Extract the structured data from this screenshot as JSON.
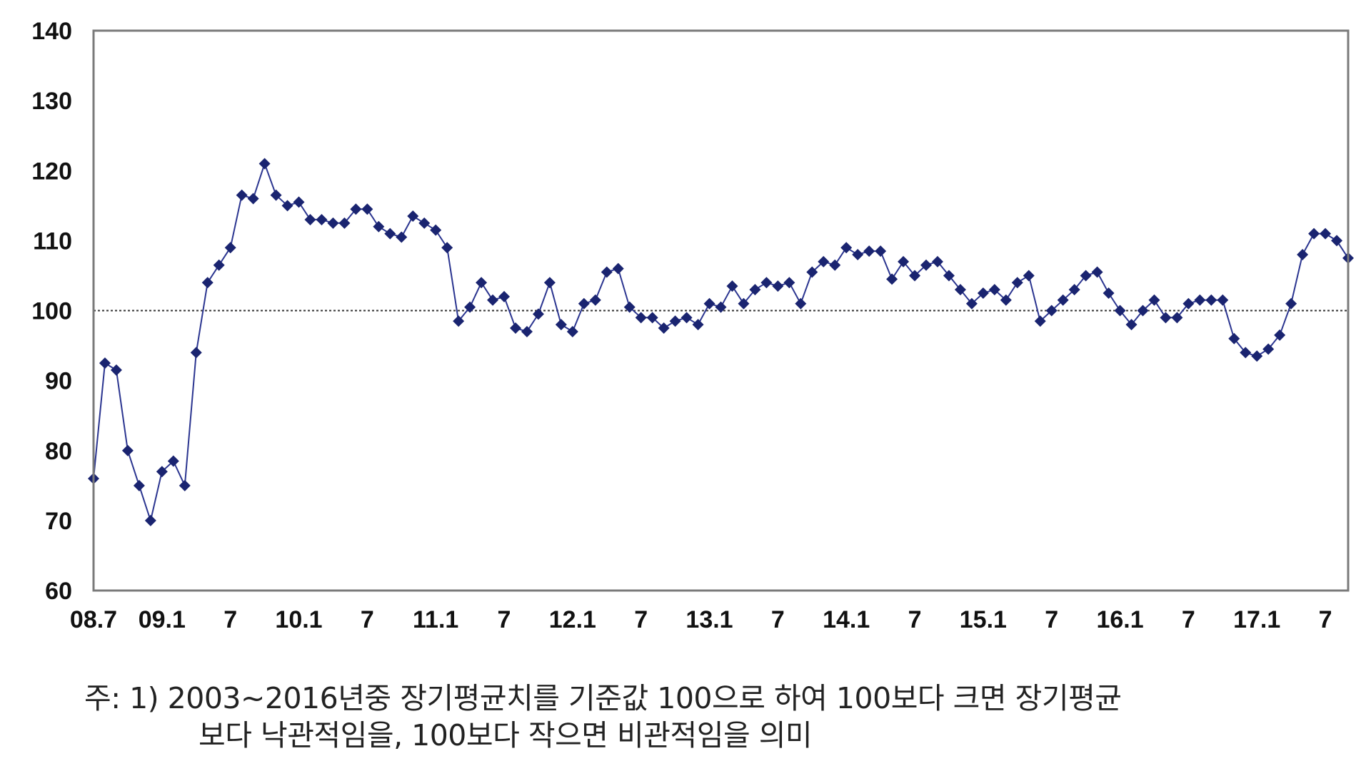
{
  "chart_data": {
    "type": "line",
    "title": "",
    "xlabel": "",
    "ylabel": "",
    "ylim": [
      60,
      140
    ],
    "yticks": [
      60,
      70,
      80,
      90,
      100,
      110,
      120,
      130,
      140
    ],
    "reference_line": {
      "y": 100,
      "style": "dotted"
    },
    "x_tick_labels": [
      "08.7",
      "09.1",
      "7",
      "10.1",
      "7",
      "11.1",
      "7",
      "12.1",
      "7",
      "13.1",
      "7",
      "14.1",
      "7",
      "15.1",
      "7",
      "16.1",
      "7",
      "17.1",
      "7"
    ],
    "x_tick_months": [
      "2008-07",
      "2009-01",
      "2009-07",
      "2010-01",
      "2010-07",
      "2011-01",
      "2011-07",
      "2012-01",
      "2012-07",
      "2013-01",
      "2013-07",
      "2014-01",
      "2014-07",
      "2015-01",
      "2015-07",
      "2016-01",
      "2016-07",
      "2017-01",
      "2017-07"
    ],
    "grid": false,
    "line_color": "#1a2470",
    "marker": "diamond",
    "series": [
      {
        "x_start": "2008-07",
        "x_end": "2017-09",
        "frequency": "monthly",
        "values": [
          76,
          92.5,
          91.5,
          80,
          75,
          70,
          77,
          78.5,
          75,
          94,
          104,
          106.5,
          109,
          116.5,
          116,
          121,
          116.5,
          115,
          115.5,
          113,
          113,
          112.5,
          112.5,
          114.5,
          114.5,
          112,
          111,
          110.5,
          113.5,
          112.5,
          111.5,
          109,
          98.5,
          100.5,
          104,
          101.5,
          102,
          97.5,
          97,
          99.5,
          104,
          98,
          97,
          101,
          101.5,
          105.5,
          106,
          100.5,
          99,
          99,
          97.5,
          98.5,
          99,
          98,
          101,
          100.5,
          103.5,
          101,
          103,
          104,
          103.5,
          104,
          101,
          105.5,
          107,
          106.5,
          109,
          108,
          108.5,
          108.5,
          104.5,
          107,
          105,
          106.5,
          107,
          105,
          103,
          101,
          102.5,
          103,
          101.5,
          104,
          105,
          98.5,
          100,
          101.5,
          103,
          105,
          105.5,
          102.5,
          100,
          98,
          100,
          101.5,
          99,
          99,
          101,
          101.5,
          101.5,
          101.5,
          96,
          94,
          93.5,
          94.5,
          96.5,
          101,
          108,
          111,
          111,
          110,
          107.5
        ]
      }
    ]
  },
  "footnote": {
    "line1": "주: 1) 2003~2016년중 장기평균치를 기준값 100으로 하여 100보다 크면 장기평균",
    "line2": "보다 낙관적임을, 100보다 작으면 비관적임을 의미"
  }
}
